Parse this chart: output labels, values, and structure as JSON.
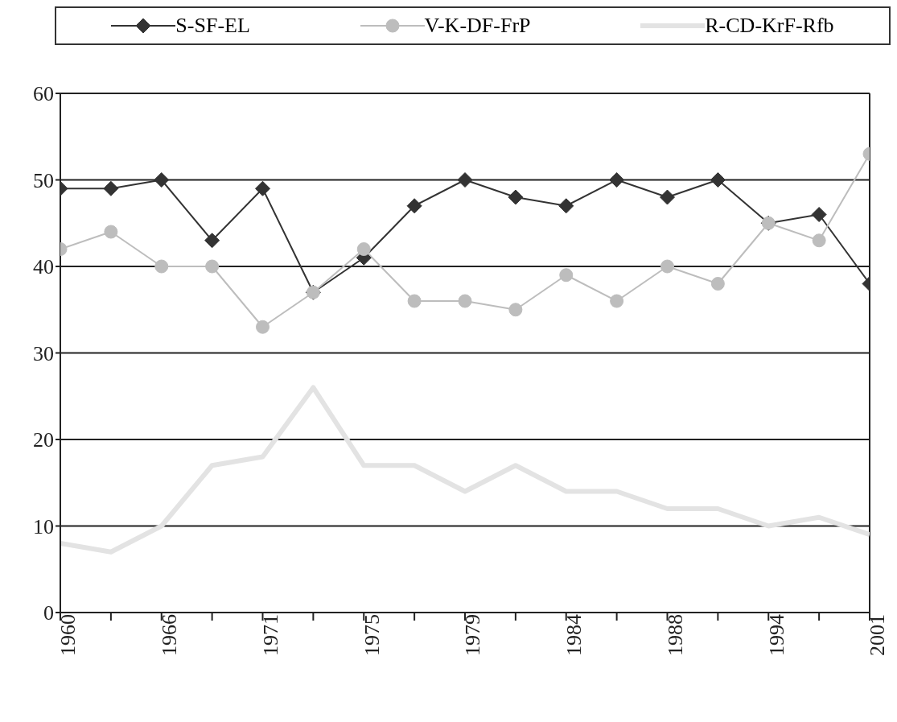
{
  "chart_data": {
    "type": "line",
    "categories": [
      "1960",
      null,
      "1966",
      null,
      "1971",
      null,
      "1975",
      null,
      "1979",
      null,
      "1984",
      null,
      "1988",
      null,
      "1994",
      null,
      "2001"
    ],
    "series": [
      {
        "name": "S-SF-EL",
        "color": "#333333",
        "marker": "diamond",
        "values": [
          49,
          49,
          50,
          43,
          49,
          37,
          41,
          47,
          50,
          48,
          47,
          50,
          48,
          50,
          45,
          46,
          38
        ]
      },
      {
        "name": "V-K-DF-FrP",
        "color": "#bdbdbd",
        "marker": "circle",
        "values": [
          42,
          44,
          40,
          40,
          33,
          37,
          42,
          36,
          36,
          35,
          39,
          36,
          40,
          38,
          45,
          43,
          53
        ]
      },
      {
        "name": "R-CD-KrF-Rfb",
        "color": "#e3e3e3",
        "marker": "none",
        "values": [
          8,
          7,
          10,
          17,
          18,
          26,
          17,
          17,
          14,
          17,
          14,
          14,
          12,
          12,
          10,
          11,
          9
        ]
      }
    ],
    "ylim": [
      0,
      60
    ],
    "yticks": [
      0,
      10,
      20,
      30,
      40,
      50,
      60
    ],
    "grid": "y",
    "legend": "top"
  }
}
